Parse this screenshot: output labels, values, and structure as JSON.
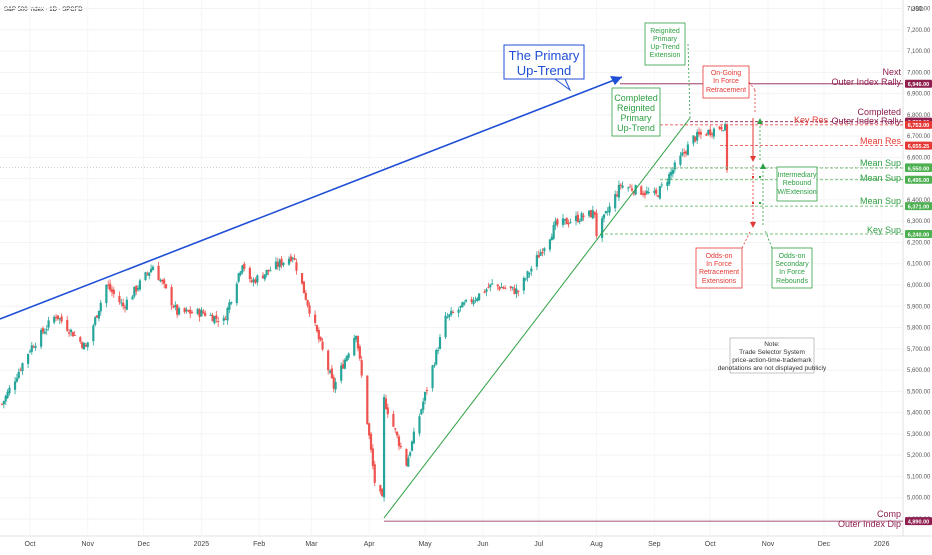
{
  "header": {
    "symbol": "S&P 500 Index · 1D · SPCFD",
    "currency": "USD"
  },
  "chart_data": {
    "type": "candlestick",
    "title": "S&P 500 Index · 1D · SPCFD",
    "ylim": [
      4820,
      7340
    ],
    "y_ticks": [
      4900,
      5000,
      5100,
      5200,
      5300,
      5400,
      5500,
      5600,
      5700,
      5800,
      5900,
      6000,
      6100,
      6200,
      6300,
      6400,
      6500,
      6600,
      6700,
      6800,
      6900,
      7000,
      7100,
      7200,
      7300
    ],
    "y_tick_labels": [
      "4,900.00",
      "5,000.00",
      "5,100.00",
      "5,200.00",
      "5,300.00",
      "5,400.00",
      "5,500.00",
      "5,600.00",
      "5,700.00",
      "5,800.00",
      "5,900.00",
      "6,000.00",
      "6,100.00",
      "6,200.00",
      "6,300.00",
      "6,400.00",
      "6,500.00",
      "6,600.00",
      "6,700.00",
      "6,800.00",
      "6,900.00",
      "7,000.00",
      "7,100.00",
      "7,200.00",
      "7,300.00"
    ],
    "x_labels": [
      "Oct",
      "Nov",
      "Dec",
      "2025",
      "Feb",
      "Mar",
      "Apr",
      "May",
      "Jun",
      "Jul",
      "Aug",
      "Sep",
      "Oct",
      "Nov",
      "Dec",
      "2026"
    ],
    "anchors": [
      {
        "date": "2024-09-16",
        "close": 5440
      },
      {
        "date": "2024-10-01",
        "close": 5700
      },
      {
        "date": "2024-10-15",
        "close": 5860
      },
      {
        "date": "2024-10-31",
        "close": 5705
      },
      {
        "date": "2024-11-11",
        "close": 6000
      },
      {
        "date": "2024-11-20",
        "close": 5900
      },
      {
        "date": "2024-12-06",
        "close": 6090
      },
      {
        "date": "2024-12-19",
        "close": 5870
      },
      {
        "date": "2025-01-02",
        "close": 5870
      },
      {
        "date": "2025-01-13",
        "close": 5830
      },
      {
        "date": "2025-01-23",
        "close": 6110
      },
      {
        "date": "2025-01-27",
        "close": 6010
      },
      {
        "date": "2025-02-19",
        "close": 6140
      },
      {
        "date": "2025-03-13",
        "close": 5520
      },
      {
        "date": "2025-03-25",
        "close": 5780
      },
      {
        "date": "2025-04-04",
        "close": 5075
      },
      {
        "date": "2025-04-08",
        "close": 4985
      },
      {
        "date": "2025-04-09",
        "close": 5460
      },
      {
        "date": "2025-04-21",
        "close": 5160
      },
      {
        "date": "2025-05-12",
        "close": 5840
      },
      {
        "date": "2025-06-06",
        "close": 6000
      },
      {
        "date": "2025-06-20",
        "close": 5970
      },
      {
        "date": "2025-07-10",
        "close": 6280
      },
      {
        "date": "2025-07-31",
        "close": 6340
      },
      {
        "date": "2025-08-01",
        "close": 6240
      },
      {
        "date": "2025-08-14",
        "close": 6470
      },
      {
        "date": "2025-09-02",
        "close": 6420
      },
      {
        "date": "2025-09-22",
        "close": 6690
      },
      {
        "date": "2025-10-08",
        "close": 6750
      },
      {
        "date": "2025-10-09",
        "close": 6735
      },
      {
        "date": "2025-10-10",
        "close": 6552
      }
    ],
    "levels": [
      {
        "name": "Next Outer Index Rally",
        "value": 6946.0,
        "label": "6,946.00",
        "color": "#8e1f4f"
      },
      {
        "name": "Completed Outer Index Rally",
        "value": 6768.0,
        "label": "6,768.00",
        "color": "#8e1f4f"
      },
      {
        "name": "Key Res",
        "value": 6753.0,
        "label": "6,753.00",
        "color": "#e53935"
      },
      {
        "name": "Mean Res",
        "value": 6655.25,
        "label": "6,655.25",
        "color": "#e53935"
      },
      {
        "name": "Mean Sup",
        "value": 6552.92,
        "label": "6,552.92",
        "color": "#4caf50"
      },
      {
        "name": "Mean Sup",
        "value": 6550.0,
        "label": "6,550.00",
        "color": "#4caf50"
      },
      {
        "name": "Mean Sup",
        "value": 6495.0,
        "label": "6,495.00",
        "color": "#4caf50"
      },
      {
        "name": "Mean Sup",
        "value": 6371.0,
        "label": "6,371.00",
        "color": "#4caf50"
      },
      {
        "name": "Key Sup",
        "value": 6240.0,
        "label": "6,240.00",
        "color": "#4caf50"
      },
      {
        "name": "Comp Outer Index Dip",
        "value": 4890.0,
        "label": "4,890.00",
        "color": "#8e1f4f"
      }
    ]
  },
  "annotations": {
    "primary_trend": [
      "The Primary",
      "Up-Trend"
    ],
    "reignited": [
      "Reignited",
      "Primary",
      "Up-Trend",
      "Extension"
    ],
    "completed_reignited": [
      "Completed",
      "Reignited",
      "Primary",
      "Up-Trend"
    ],
    "ongoing": [
      "On-Going",
      "In Force",
      "Retracement"
    ],
    "intermediary": [
      "Intermediary",
      "Rebound",
      "W/Extension"
    ],
    "odds_retracement": [
      "Odds-on",
      "In Force",
      "Retracement",
      "Extensions"
    ],
    "odds_secondary": [
      "Odds-on",
      "Secondary",
      "In Force",
      "Rebounds"
    ],
    "note": [
      "Note:",
      "Trade Selector System",
      "price-action-time-trademark",
      "denotations are not displayed publicly"
    ],
    "level_text": {
      "next_1": "Next",
      "next_2": "Outer Index Rally",
      "completed_1": "Completed",
      "completed_2": "Outer Index Rally",
      "key_res": "Key Res",
      "mean_res": "Mean Res",
      "mean_sup": "Mean Sup",
      "key_sup": "Key Sup",
      "comp_1": "Comp",
      "comp_2": "Outer Index Dip"
    }
  },
  "colors": {
    "up": "#26a69a",
    "down": "#ef5350",
    "trend_blue": "#1f4fd6",
    "trend_green": "#2ea043",
    "level_purple": "#8e1f4f",
    "level_red": "#e53935",
    "level_green": "#4caf50",
    "note_border": "#9e9e9e"
  }
}
